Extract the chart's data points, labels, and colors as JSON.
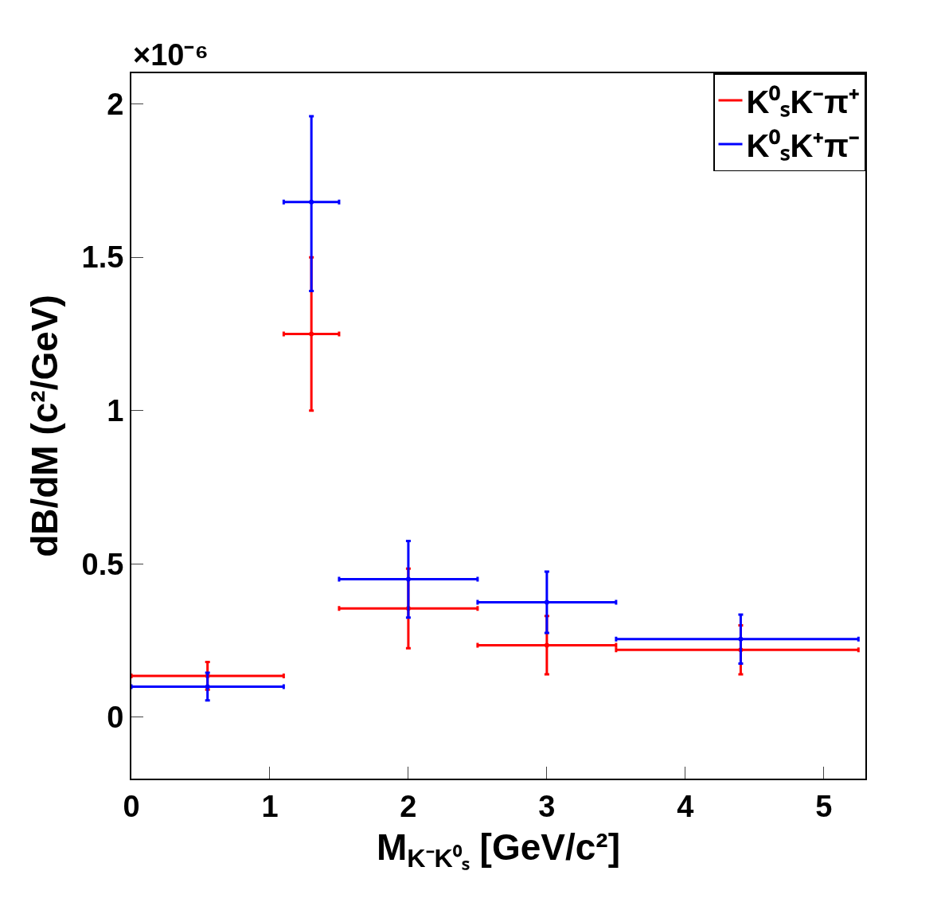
{
  "chart_data": {
    "type": "scatter",
    "xlabel": "M$_{K⁻K⁰ₛ}$ [GeV/c²]",
    "ylabel": "dB/dM (c²/GeV)",
    "annotations": [
      "×10⁻⁶"
    ],
    "x": [
      0.55,
      1.3,
      2,
      3,
      4.4
    ],
    "series": [
      {
        "name": "K⁰ₛK⁻π⁺",
        "color": "#ff0000",
        "values": [
          0.135,
          1.25,
          0.355,
          0.235,
          0.22
        ],
        "errors": [
          0.045,
          0.25,
          0.13,
          0.095,
          0.08
        ],
        "xerrors": [
          0.55,
          0.2,
          0.5,
          0.5,
          [
            3.5,
            5.25
          ]
        ]
      },
      {
        "name": "K⁰ₛK⁺π⁻",
        "color": "#0000ff",
        "values": [
          0.1,
          1.68,
          0.45,
          0.375,
          0.255
        ],
        "errors": [
          0.045,
          [
            1.39,
            1.96
          ],
          0.125,
          0.1,
          0.08
        ],
        "xerrors": [
          0.55,
          0.2,
          0.5,
          0.5,
          [
            3.5,
            5.25
          ]
        ]
      }
    ],
    "xlim": [
      0,
      5.3
    ],
    "xticks": [
      0,
      1,
      2,
      3,
      4,
      5
    ],
    "ylim": [
      -0.2,
      2.1
    ],
    "yticks": [
      0,
      0.5,
      1,
      1.5,
      2
    ],
    "legend": "top right",
    "marker": "none"
  }
}
